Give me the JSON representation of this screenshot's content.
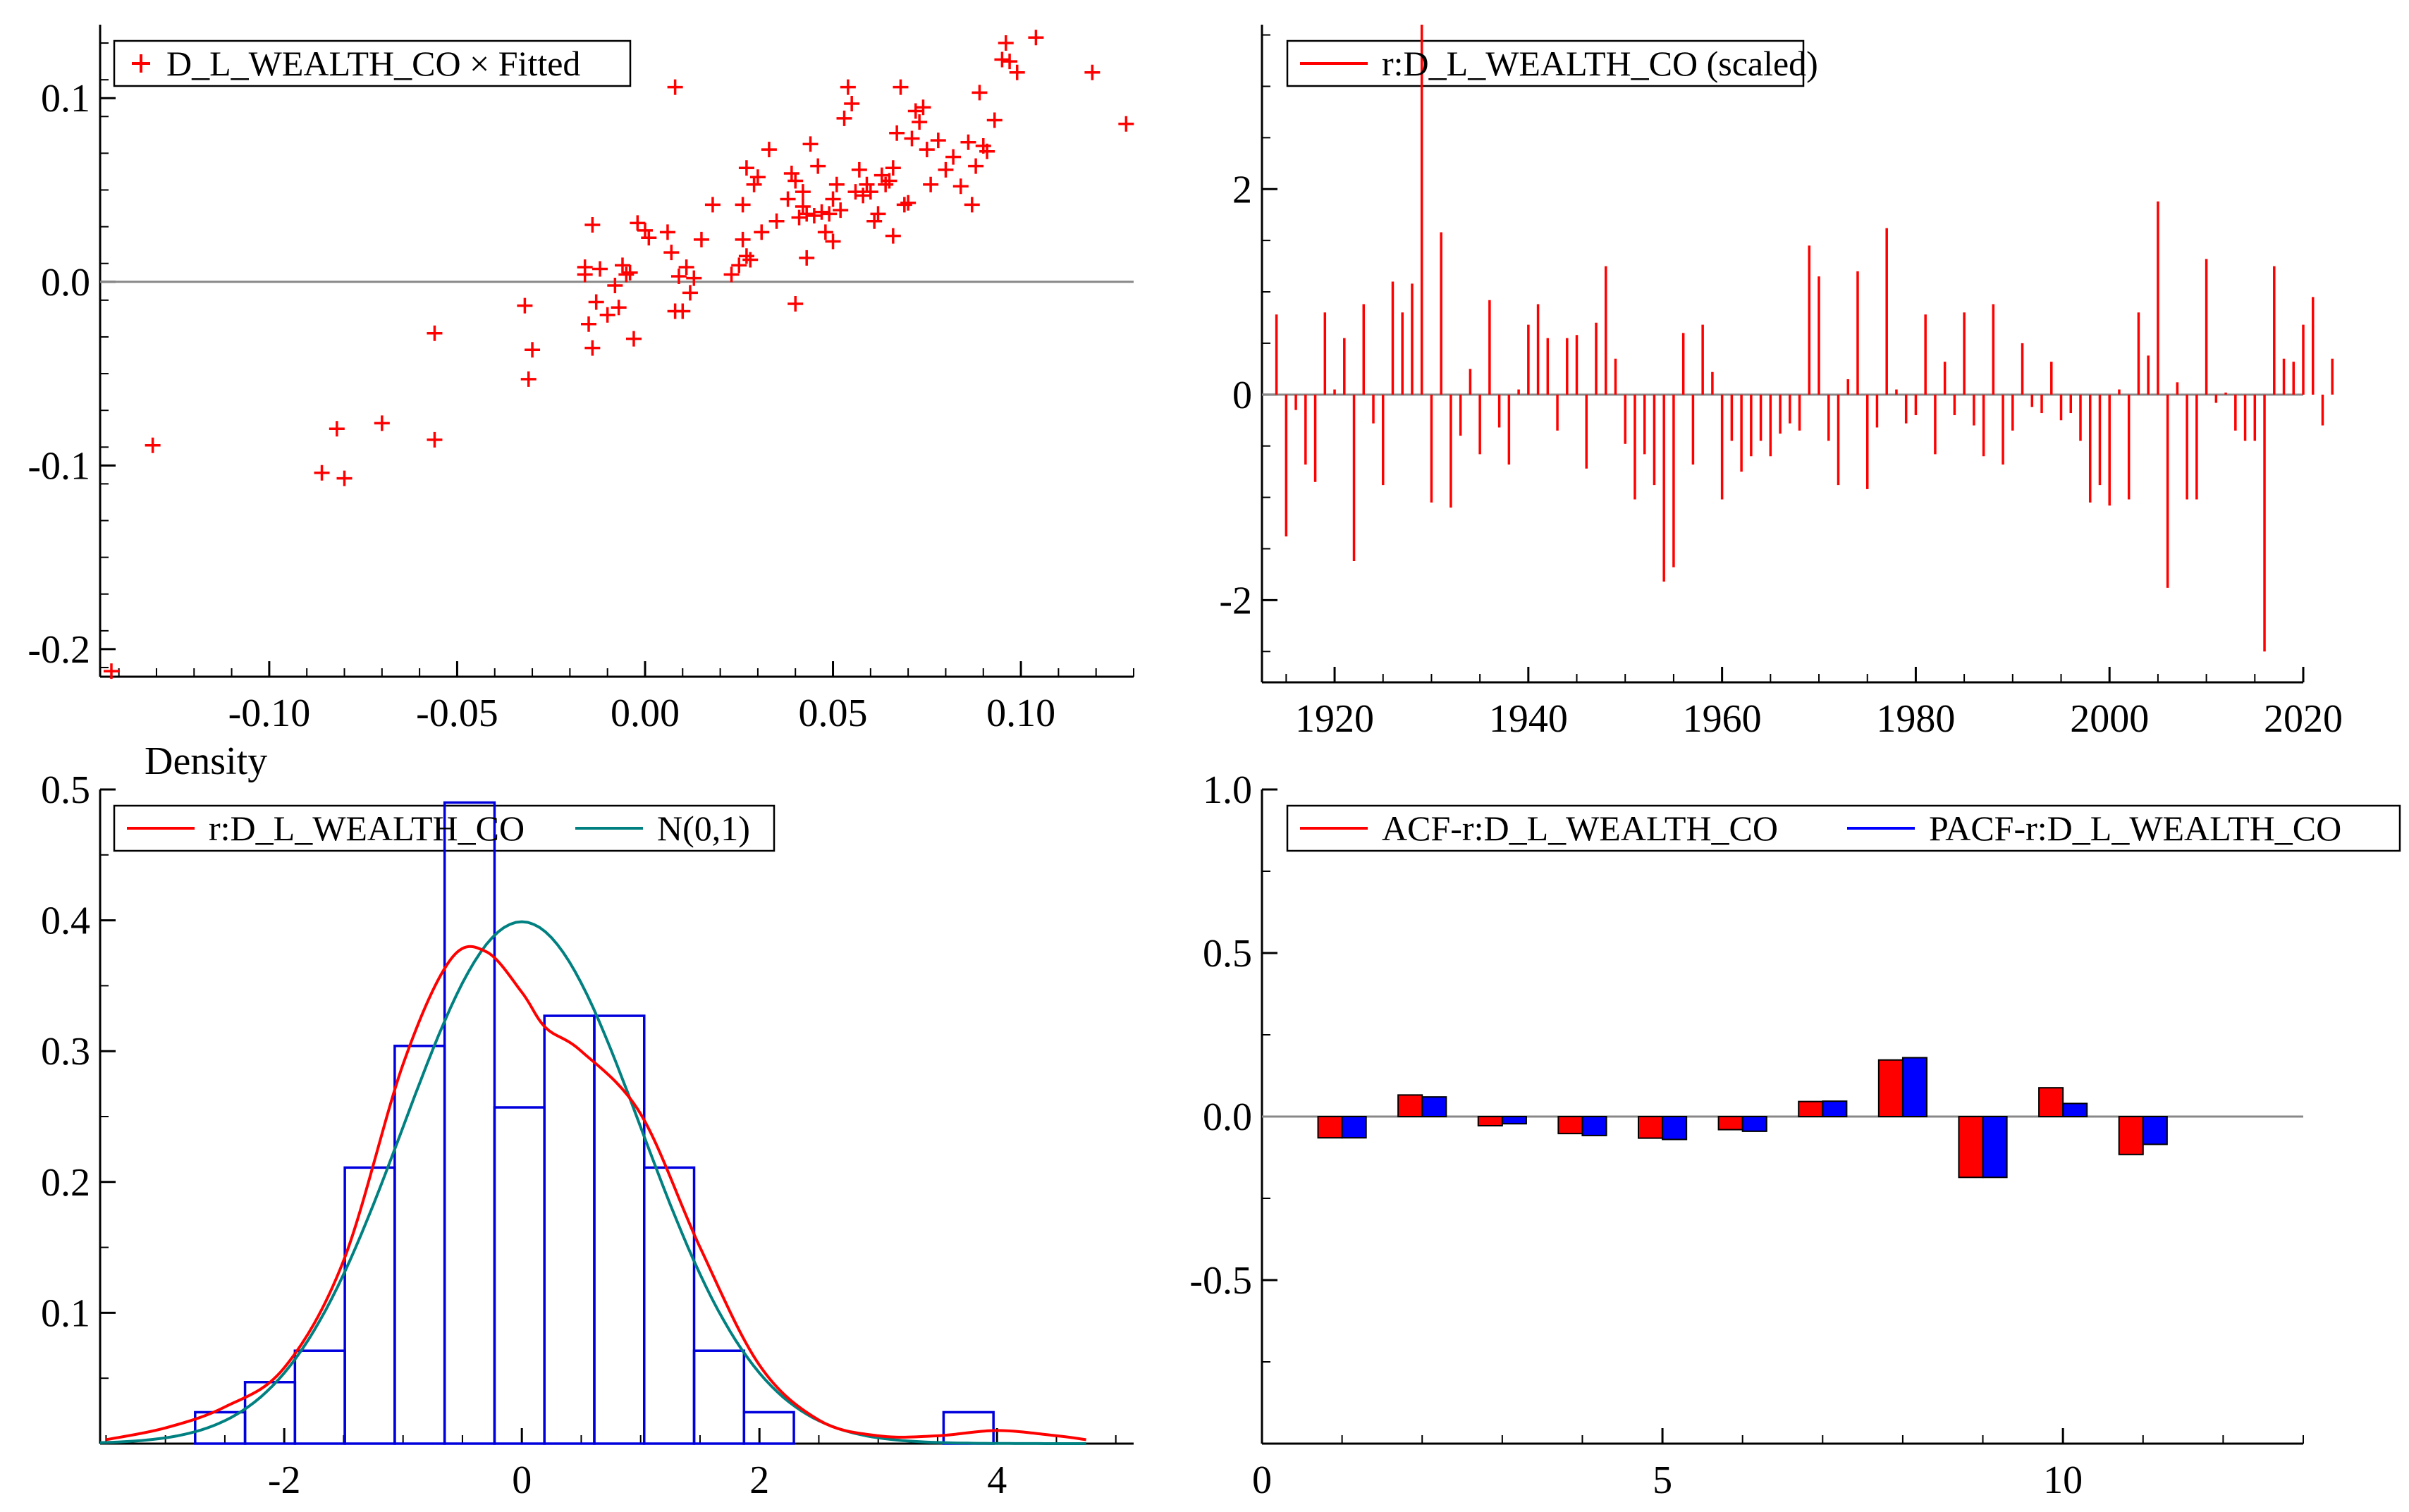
{
  "chart_data": [
    {
      "id": "scatter",
      "type": "scatter",
      "title": "",
      "legend": [
        "D_L_WEALTH_CO × Fitted"
      ],
      "legend_position": "top-left",
      "xlim": [
        -0.145,
        0.13
      ],
      "ylim": [
        -0.215,
        0.14
      ],
      "xticks": [
        -0.1,
        -0.05,
        0.0,
        0.05,
        0.1
      ],
      "xtick_labels": [
        "-0.10",
        "-0.05",
        "0.00",
        "0.05",
        "0.10"
      ],
      "yticks": [
        -0.2,
        -0.1,
        0.0,
        0.1
      ],
      "ytick_labels": [
        "-0.2",
        "-0.1",
        "0.0",
        "0.1"
      ],
      "reference_line_y": 0,
      "colors": {
        "points": "#ff0000",
        "zero_line": "#888888"
      },
      "points": [
        [
          -0.142,
          -0.212
        ],
        [
          -0.131,
          -0.089
        ],
        [
          -0.086,
          -0.104
        ],
        [
          -0.082,
          -0.08
        ],
        [
          -0.08,
          -0.107
        ],
        [
          -0.07,
          -0.077
        ],
        [
          -0.056,
          -0.028
        ],
        [
          -0.056,
          -0.086
        ],
        [
          -0.032,
          -0.013
        ],
        [
          -0.031,
          -0.053
        ],
        [
          -0.03,
          -0.037
        ],
        [
          -0.016,
          0.008
        ],
        [
          -0.016,
          0.004
        ],
        [
          -0.015,
          -0.023
        ],
        [
          -0.014,
          -0.036
        ],
        [
          -0.014,
          0.031
        ],
        [
          -0.013,
          -0.011
        ],
        [
          -0.012,
          0.007
        ],
        [
          -0.01,
          -0.018
        ],
        [
          -0.008,
          -0.002
        ],
        [
          -0.007,
          -0.014
        ],
        [
          -0.006,
          0.009
        ],
        [
          -0.005,
          0.004
        ],
        [
          -0.004,
          0.005
        ],
        [
          -0.003,
          -0.031
        ],
        [
          -0.002,
          0.032
        ],
        [
          0.0,
          0.028
        ],
        [
          0.001,
          0.024
        ],
        [
          0.006,
          0.027
        ],
        [
          0.007,
          0.016
        ],
        [
          0.008,
          0.106
        ],
        [
          0.008,
          -0.016
        ],
        [
          0.009,
          0.003
        ],
        [
          0.01,
          -0.016
        ],
        [
          0.011,
          0.008
        ],
        [
          0.012,
          -0.006
        ],
        [
          0.013,
          0.002
        ],
        [
          0.015,
          0.023
        ],
        [
          0.018,
          0.042
        ],
        [
          0.023,
          0.004
        ],
        [
          0.025,
          0.009
        ],
        [
          0.026,
          0.042
        ],
        [
          0.026,
          0.023
        ],
        [
          0.027,
          0.014
        ],
        [
          0.027,
          0.062
        ],
        [
          0.028,
          0.012
        ],
        [
          0.029,
          0.053
        ],
        [
          0.03,
          0.057
        ],
        [
          0.031,
          0.027
        ],
        [
          0.033,
          0.072
        ],
        [
          0.035,
          0.033
        ],
        [
          0.038,
          0.045
        ],
        [
          0.039,
          0.059
        ],
        [
          0.04,
          0.055
        ],
        [
          0.04,
          -0.012
        ],
        [
          0.041,
          0.035
        ],
        [
          0.042,
          0.041
        ],
        [
          0.042,
          0.049
        ],
        [
          0.043,
          0.013
        ],
        [
          0.043,
          0.037
        ],
        [
          0.044,
          0.075
        ],
        [
          0.045,
          0.036
        ],
        [
          0.046,
          0.063
        ],
        [
          0.047,
          0.038
        ],
        [
          0.048,
          0.027
        ],
        [
          0.049,
          0.037
        ],
        [
          0.05,
          0.022
        ],
        [
          0.05,
          0.045
        ],
        [
          0.051,
          0.053
        ],
        [
          0.052,
          0.039
        ],
        [
          0.053,
          0.089
        ],
        [
          0.054,
          0.106
        ],
        [
          0.055,
          0.097
        ],
        [
          0.056,
          0.049
        ],
        [
          0.057,
          0.061
        ],
        [
          0.058,
          0.047
        ],
        [
          0.059,
          0.053
        ],
        [
          0.06,
          0.049
        ],
        [
          0.061,
          0.033
        ],
        [
          0.062,
          0.037
        ],
        [
          0.063,
          0.058
        ],
        [
          0.064,
          0.053
        ],
        [
          0.065,
          0.055
        ],
        [
          0.066,
          0.062
        ],
        [
          0.066,
          0.025
        ],
        [
          0.067,
          0.081
        ],
        [
          0.068,
          0.106
        ],
        [
          0.069,
          0.042
        ],
        [
          0.07,
          0.043
        ],
        [
          0.071,
          0.078
        ],
        [
          0.072,
          0.093
        ],
        [
          0.073,
          0.087
        ],
        [
          0.074,
          0.095
        ],
        [
          0.075,
          0.072
        ],
        [
          0.076,
          0.053
        ],
        [
          0.078,
          0.077
        ],
        [
          0.08,
          0.061
        ],
        [
          0.082,
          0.068
        ],
        [
          0.084,
          0.052
        ],
        [
          0.086,
          0.076
        ],
        [
          0.087,
          0.042
        ],
        [
          0.088,
          0.063
        ],
        [
          0.089,
          0.103
        ],
        [
          0.09,
          0.074
        ],
        [
          0.091,
          0.071
        ],
        [
          0.093,
          0.088
        ],
        [
          0.095,
          0.121
        ],
        [
          0.096,
          0.13
        ],
        [
          0.097,
          0.12
        ],
        [
          0.099,
          0.114
        ],
        [
          0.104,
          0.133
        ],
        [
          0.119,
          0.114
        ],
        [
          0.128,
          0.086
        ]
      ]
    },
    {
      "id": "residuals",
      "type": "bar",
      "legend": [
        "r:D_L_WEALTH_CO (scaled)"
      ],
      "legend_position": "top-left",
      "x_start": 1914,
      "xlim": [
        1912.5,
        2020
      ],
      "ylim": [
        -2.8,
        3.6
      ],
      "xticks": [
        1920,
        1940,
        1960,
        1980,
        2000,
        2020
      ],
      "xtick_labels": [
        "1920",
        "1940",
        "1960",
        "1980",
        "2000",
        "2020"
      ],
      "yticks": [
        -2,
        0,
        2
      ],
      "ytick_labels": [
        "-2",
        "0",
        "2"
      ],
      "colors": {
        "bars": "#ff0000",
        "zero_line": "#888888"
      },
      "values": [
        0.78,
        -1.38,
        -0.15,
        -0.68,
        -0.85,
        0.8,
        0.05,
        0.55,
        -1.62,
        0.88,
        -0.28,
        -0.88,
        1.1,
        0.8,
        1.08,
        3.6,
        -1.05,
        1.58,
        -1.1,
        -0.4,
        0.25,
        -0.58,
        0.92,
        -0.32,
        -0.68,
        0.05,
        0.68,
        0.88,
        0.55,
        -0.35,
        0.55,
        0.58,
        -0.72,
        0.7,
        1.25,
        0.35,
        -0.48,
        -1.02,
        -0.58,
        -0.88,
        -1.82,
        -1.68,
        0.6,
        -0.68,
        0.68,
        0.22,
        -1.02,
        -0.45,
        -0.75,
        -0.6,
        -0.45,
        -0.6,
        -0.38,
        -0.28,
        -0.35,
        1.45,
        1.15,
        -0.45,
        -0.88,
        0.15,
        1.2,
        -0.92,
        -0.32,
        1.62,
        0.05,
        -0.28,
        -0.2,
        0.78,
        -0.58,
        0.32,
        -0.2,
        0.8,
        -0.3,
        -0.6,
        0.88,
        -0.68,
        -0.35,
        0.5,
        -0.12,
        -0.18,
        0.32,
        -0.25,
        -0.18,
        -0.45,
        -1.05,
        -0.88,
        -1.08,
        0.05,
        -1.02,
        0.8,
        0.38,
        1.88,
        -1.88,
        0.12,
        -1.02,
        -1.02,
        1.32,
        -0.08,
        0.02,
        -0.35,
        -0.45,
        -0.45,
        -2.5,
        1.25,
        0.35,
        0.32,
        0.68,
        0.95,
        -0.3,
        0.35
      ]
    },
    {
      "id": "density",
      "type": "histogram",
      "ylabel": "Density",
      "legend": [
        "r:D_L_WEALTH_CO",
        "N(0,1)"
      ],
      "legend_position": "top-left",
      "xlim": [
        -3.55,
        5.15
      ],
      "ylim": [
        0,
        0.5
      ],
      "xticks": [
        -2,
        0,
        2,
        4
      ],
      "xtick_labels": [
        "-2",
        "0",
        "2",
        "4"
      ],
      "yticks": [
        0.1,
        0.2,
        0.3,
        0.4,
        0.5
      ],
      "ytick_labels": [
        "0.1",
        "0.2",
        "0.3",
        "0.4",
        "0.5"
      ],
      "colors": {
        "histogram": "#0000dd",
        "kernel_density": "#ff0000",
        "normal": "#008080"
      },
      "bin_edges": [
        -2.75,
        -2.33,
        -1.91,
        -1.49,
        -1.07,
        -0.65,
        -0.23,
        0.19,
        0.61,
        1.03,
        1.45,
        1.87,
        2.29,
        2.71,
        3.13,
        3.55,
        3.97
      ],
      "bin_heights": [
        0.024,
        0.047,
        0.071,
        0.211,
        0.304,
        0.49,
        0.257,
        0.327,
        0.327,
        0.211,
        0.071,
        0.024,
        0,
        0,
        0,
        0.024
      ],
      "kernel_density": {
        "x": [
          -3.5,
          -3.0,
          -2.5,
          -2.0,
          -1.5,
          -1.0,
          -0.6,
          -0.3,
          0.0,
          0.2,
          0.5,
          1.0,
          1.5,
          2.0,
          2.5,
          3.0,
          3.5,
          4.0,
          4.5,
          4.75
        ],
        "y": [
          0.003,
          0.012,
          0.028,
          0.058,
          0.14,
          0.29,
          0.37,
          0.376,
          0.345,
          0.318,
          0.3,
          0.252,
          0.15,
          0.06,
          0.018,
          0.006,
          0.006,
          0.01,
          0.006,
          0.003
        ]
      },
      "normal_density": {
        "mean": 0,
        "sd": 1
      }
    },
    {
      "id": "correlogram",
      "type": "bar",
      "legend": [
        "ACF-r:D_L_WEALTH_CO",
        "PACF-r:D_L_WEALTH_CO"
      ],
      "legend_position": "top-left",
      "xlim": [
        0,
        13
      ],
      "ylim": [
        -1,
        1
      ],
      "xticks": [
        0,
        5,
        10
      ],
      "xtick_labels": [
        "0",
        "5",
        "10"
      ],
      "yticks": [
        -0.5,
        0.0,
        0.5,
        1.0
      ],
      "ytick_labels": [
        "-0.5",
        "0.0",
        "0.5",
        "1.0"
      ],
      "categories": [
        1,
        2,
        3,
        4,
        5,
        6,
        7,
        8,
        9,
        10,
        11
      ],
      "series": [
        {
          "name": "ACF-r:D_L_WEALTH_CO",
          "color": "#ff0000",
          "values": [
            -0.065,
            0.066,
            -0.028,
            -0.052,
            -0.066,
            -0.04,
            0.046,
            0.173,
            -0.186,
            0.088,
            -0.116
          ]
        },
        {
          "name": "PACF-r:D_L_WEALTH_CO",
          "color": "#0000ff",
          "values": [
            -0.065,
            0.06,
            -0.022,
            -0.058,
            -0.07,
            -0.045,
            0.047,
            0.18,
            -0.186,
            0.04,
            -0.085
          ]
        }
      ],
      "reference_line_y": 0
    }
  ]
}
